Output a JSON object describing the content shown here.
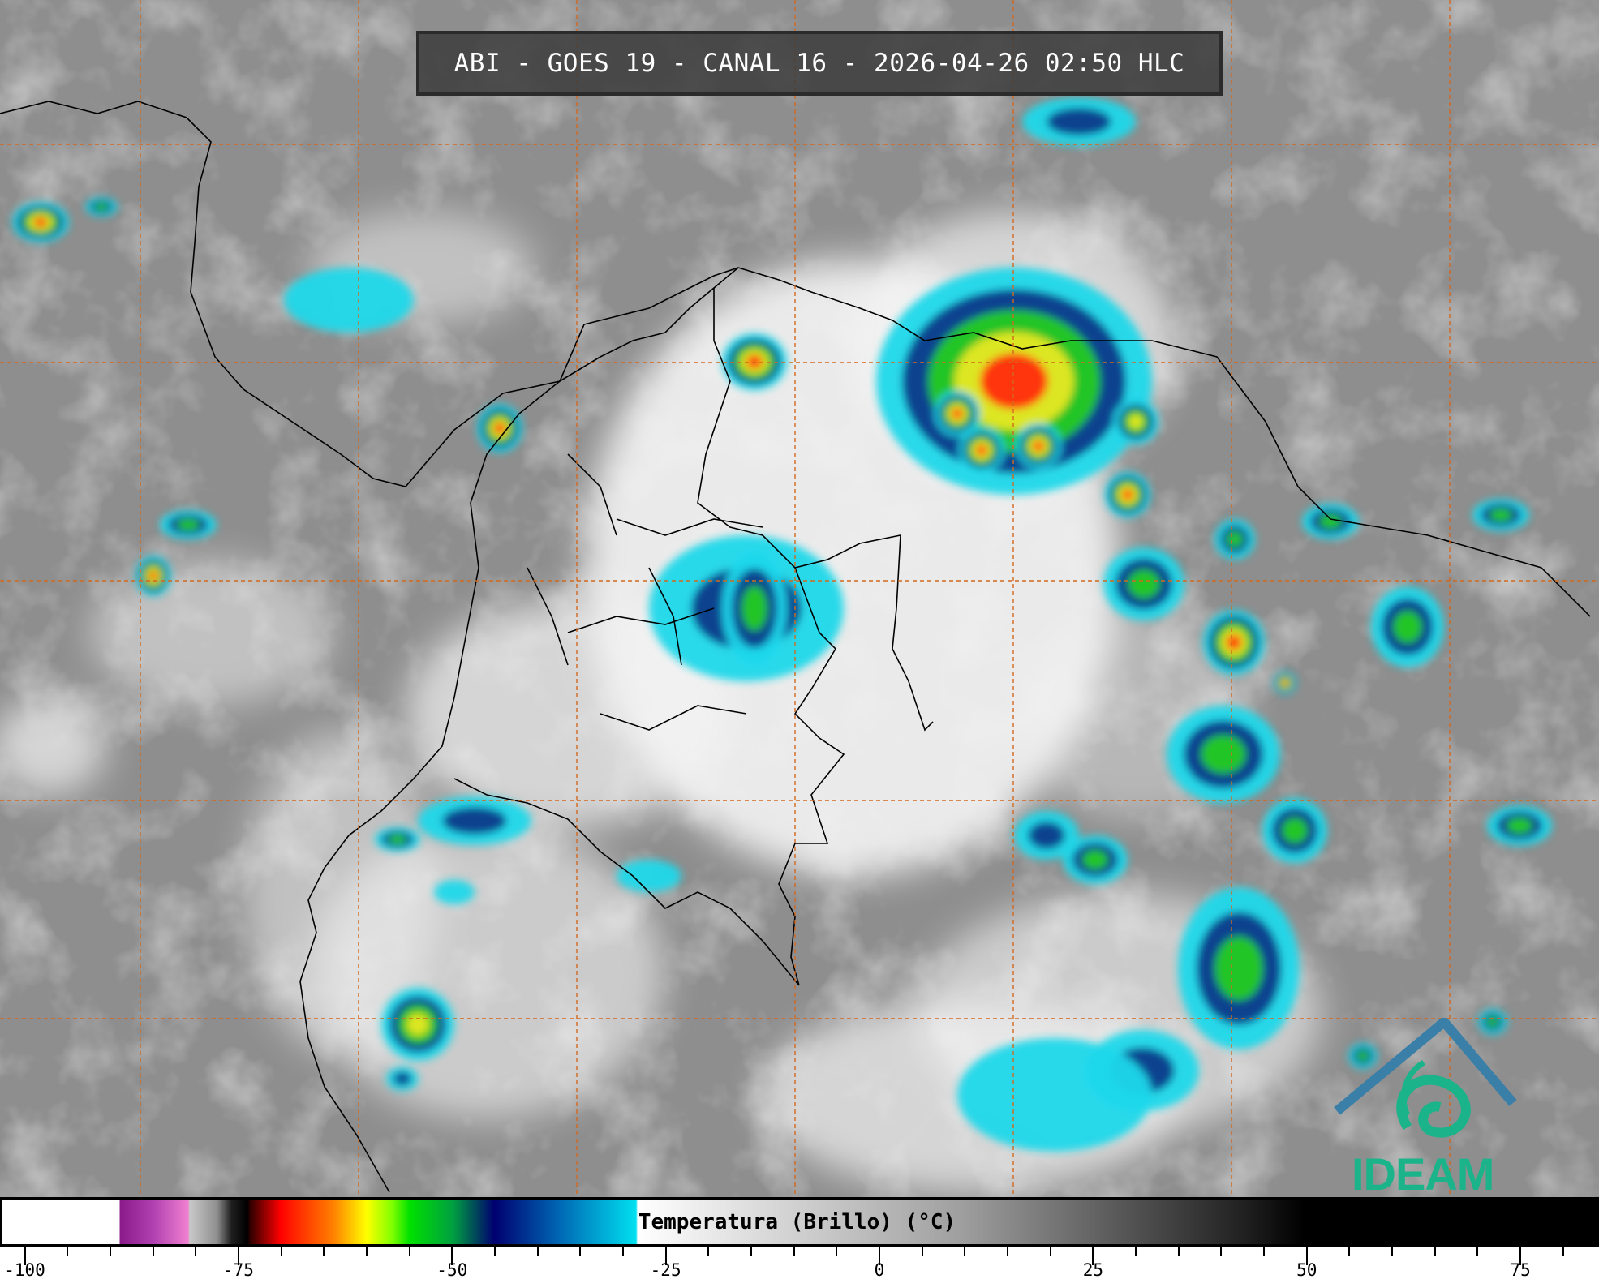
{
  "title": "ABI - GOES 19 - CANAL 16 - 2026-04-26 02:50 HLC",
  "colorbar": {
    "label": "Temperatura (Brillo) (°C)",
    "min": -102.9,
    "max": 84.2,
    "tick_step": 5,
    "tick_labels": [
      "-100",
      "-75",
      "-50",
      "-25",
      "0",
      "25",
      "50",
      "75"
    ],
    "tick_values": [
      -100,
      -75,
      -50,
      -25,
      0,
      25,
      50,
      75
    ]
  },
  "logo": {
    "text": "IDEAM",
    "color": "#1bb38a",
    "roof_color": "#3a7fa8"
  },
  "colors": {
    "grid": "#d2691e",
    "coastline": "#000000"
  }
}
